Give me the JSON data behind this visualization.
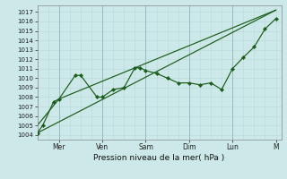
{
  "xlabel": "Pression niveau de la mer( hPa )",
  "bg_color": "#cce8e8",
  "grid_color_minor": "#b8d8d8",
  "grid_color_major": "#99bbbb",
  "line_color": "#1a5c1a",
  "ylim": [
    1003.5,
    1017.7
  ],
  "xlim": [
    0,
    22.5
  ],
  "yticks": [
    1004,
    1005,
    1006,
    1007,
    1008,
    1009,
    1010,
    1011,
    1012,
    1013,
    1014,
    1015,
    1016,
    1017
  ],
  "day_positions": [
    2.0,
    6.0,
    10.0,
    14.0,
    18.0,
    22.0
  ],
  "day_labels": [
    "Mer",
    "Ven",
    "Sam",
    "Dim",
    "Lun",
    "M"
  ],
  "series_main_x": [
    0,
    0.5,
    1.5,
    2.0,
    3.5,
    4.0,
    5.5,
    6.0,
    7.0,
    8.0,
    9.0,
    9.5,
    10.0,
    11.0,
    12.0,
    13.0,
    14.0,
    15.0,
    16.0,
    17.0,
    18.0,
    19.0,
    20.0,
    21.0,
    22.0
  ],
  "series_main_y": [
    1004.2,
    1005.0,
    1007.5,
    1007.8,
    1010.3,
    1010.3,
    1008.0,
    1008.0,
    1008.8,
    1009.0,
    1011.1,
    1011.1,
    1010.8,
    1010.5,
    1010.0,
    1009.5,
    1009.5,
    1009.3,
    1009.5,
    1008.8,
    1011.0,
    1012.2,
    1013.3,
    1015.2,
    1016.3
  ],
  "trend1_x": [
    0,
    22.0
  ],
  "trend1_y": [
    1004.2,
    1017.2
  ],
  "trend2_x": [
    0,
    2.0,
    22.0
  ],
  "trend2_y": [
    1005.0,
    1007.8,
    1017.2
  ],
  "vert_lines_x": [
    2.0,
    6.0,
    10.0,
    14.0,
    18.0
  ]
}
